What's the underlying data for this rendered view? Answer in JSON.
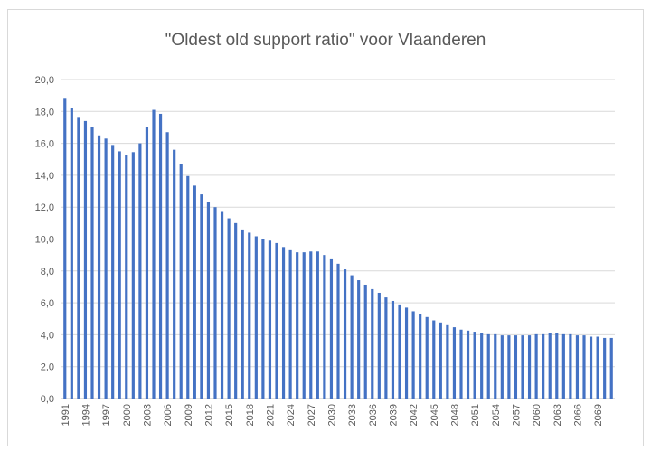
{
  "chart_data": {
    "type": "bar",
    "title": "\"Oldest old support ratio\" voor Vlaanderen",
    "xlabel": "",
    "ylabel": "",
    "ylim": [
      0,
      20
    ],
    "yticks": [
      "0,0",
      "2,0",
      "4,0",
      "6,0",
      "8,0",
      "10,0",
      "12,0",
      "14,0",
      "16,0",
      "18,0",
      "20,0"
    ],
    "grid": true,
    "bar_color": "#4472c4",
    "x_start": 1991,
    "x_label_step": 3,
    "categories": [
      1991,
      1992,
      1993,
      1994,
      1995,
      1996,
      1997,
      1998,
      1999,
      2000,
      2001,
      2002,
      2003,
      2004,
      2005,
      2006,
      2007,
      2008,
      2009,
      2010,
      2011,
      2012,
      2013,
      2014,
      2015,
      2016,
      2017,
      2018,
      2019,
      2020,
      2021,
      2022,
      2023,
      2024,
      2025,
      2026,
      2027,
      2028,
      2029,
      2030,
      2031,
      2032,
      2033,
      2034,
      2035,
      2036,
      2037,
      2038,
      2039,
      2040,
      2041,
      2042,
      2043,
      2044,
      2045,
      2046,
      2047,
      2048,
      2049,
      2050,
      2051,
      2052,
      2053,
      2054,
      2055,
      2056,
      2057,
      2058,
      2059,
      2060,
      2061,
      2062,
      2063,
      2064,
      2065,
      2066,
      2067,
      2068,
      2069,
      2070,
      2071
    ],
    "values": [
      18.85,
      18.2,
      17.6,
      17.4,
      17.0,
      16.5,
      16.3,
      15.9,
      15.5,
      15.25,
      15.45,
      16.0,
      17.0,
      18.1,
      17.85,
      16.7,
      15.6,
      14.7,
      13.95,
      13.35,
      12.8,
      12.35,
      12.0,
      11.7,
      11.3,
      11.0,
      10.6,
      10.4,
      10.17,
      10.0,
      9.9,
      9.75,
      9.5,
      9.3,
      9.17,
      9.17,
      9.22,
      9.22,
      9.0,
      8.73,
      8.45,
      8.1,
      7.73,
      7.42,
      7.14,
      6.86,
      6.63,
      6.34,
      6.12,
      5.9,
      5.7,
      5.47,
      5.27,
      5.11,
      4.9,
      4.77,
      4.6,
      4.47,
      4.32,
      4.26,
      4.19,
      4.11,
      4.03,
      4.03,
      3.96,
      3.96,
      3.96,
      3.96,
      3.96,
      4.03,
      4.03,
      4.11,
      4.11,
      4.03,
      4.03,
      3.96,
      3.96,
      3.88,
      3.88,
      3.8,
      3.8
    ]
  }
}
